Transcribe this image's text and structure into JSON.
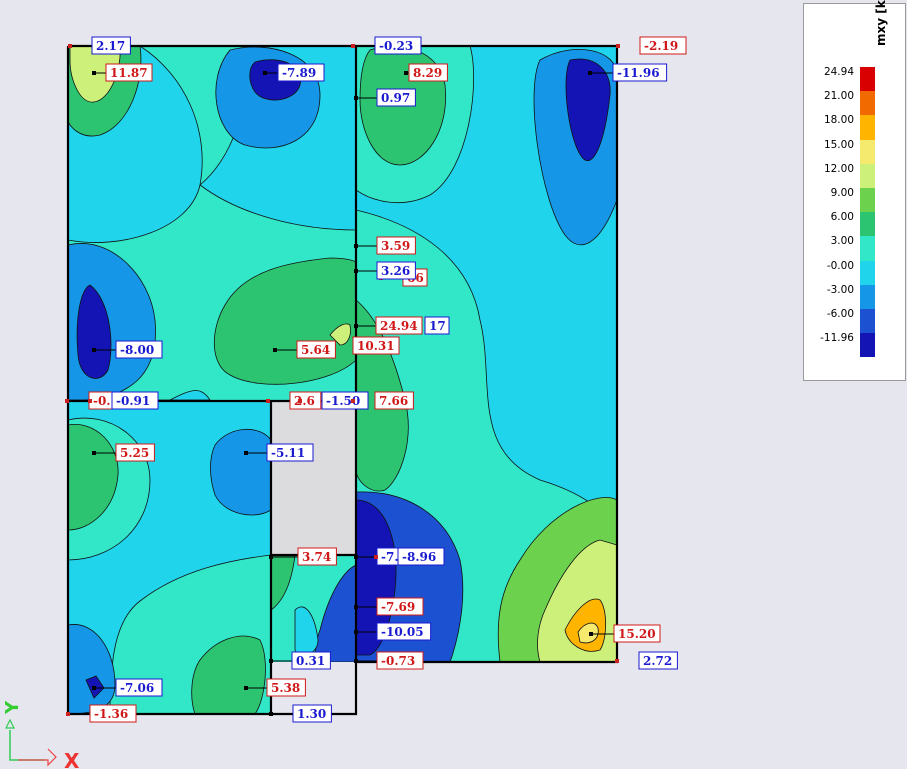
{
  "chart_data": {
    "type": "heatmap",
    "legend": {
      "title": "mxy [kNm/m]",
      "ticks": [
        "24.94",
        "21.00",
        "18.00",
        "15.00",
        "12.00",
        "9.00",
        "6.00",
        "3.00",
        "-0.00",
        "-3.00",
        "-6.00",
        "-11.96"
      ],
      "colors": [
        "#d80000",
        "#f06a00",
        "#ffb400",
        "#f5e96e",
        "#ccf07a",
        "#6cd24e",
        "#2dc471",
        "#32e6c8",
        "#20d4ec",
        "#1696e6",
        "#1c52d2",
        "#1414b4"
      ]
    },
    "point_labels": [
      {
        "text": "2.17",
        "sign": "neg"
      },
      {
        "text": "11.87",
        "sign": "pos"
      },
      {
        "text": "-7.89",
        "sign": "neg"
      },
      {
        "text": "-0.23",
        "sign": "neg"
      },
      {
        "text": "8.29",
        "sign": "pos"
      },
      {
        "text": "-2.19",
        "sign": "pos"
      },
      {
        "text": "-11.96",
        "sign": "neg"
      },
      {
        "text": "0.97",
        "sign": "neg"
      },
      {
        "text": "3.59",
        "sign": "pos"
      },
      {
        "text": "66",
        "sign": "pos"
      },
      {
        "text": "3.26",
        "sign": "neg"
      },
      {
        "text": "17",
        "sign": "neg"
      },
      {
        "text": "24.94",
        "sign": "pos"
      },
      {
        "text": "10.31",
        "sign": "pos"
      },
      {
        "text": "5.64",
        "sign": "pos"
      },
      {
        "text": "-8.00",
        "sign": "neg"
      },
      {
        "text": "-0.",
        "sign": "pos"
      },
      {
        "text": "-0.91",
        "sign": "neg"
      },
      {
        "text": "2.6",
        "sign": "pos"
      },
      {
        "text": "-1.50",
        "sign": "neg"
      },
      {
        "text": "7.66",
        "sign": "pos"
      },
      {
        "text": "5.25",
        "sign": "pos"
      },
      {
        "text": "-5.11",
        "sign": "neg"
      },
      {
        "text": "3.74",
        "sign": "pos"
      },
      {
        "text": "-7.",
        "sign": "neg"
      },
      {
        "text": "-8.96",
        "sign": "neg"
      },
      {
        "text": "-7.69",
        "sign": "pos"
      },
      {
        "text": "-10.05",
        "sign": "neg"
      },
      {
        "text": "15.20",
        "sign": "pos"
      },
      {
        "text": "0.31",
        "sign": "neg"
      },
      {
        "text": "-0.73",
        "sign": "pos"
      },
      {
        "text": "2.72",
        "sign": "neg"
      },
      {
        "text": "-7.06",
        "sign": "neg"
      },
      {
        "text": "5.38",
        "sign": "pos"
      },
      {
        "text": "-1.36",
        "sign": "pos"
      },
      {
        "text": "1.30",
        "sign": "neg"
      }
    ],
    "axes": {
      "x_label": "X",
      "y_label": "Y"
    }
  }
}
